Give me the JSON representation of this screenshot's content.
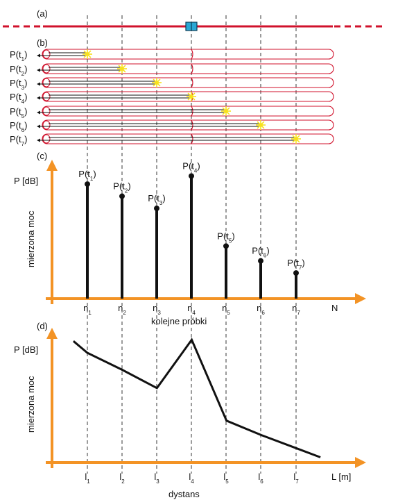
{
  "panel_labels": [
    "(a)",
    "(b)",
    "(c)",
    "(d)"
  ],
  "colors": {
    "fiber_red": "#d0112b",
    "axis_orange": "#f39325",
    "flash_yellow": "#f7e11d",
    "device_blue": "#2aa7d4",
    "ink": "#111111"
  },
  "pulse_labels": [
    {
      "base": "P(t",
      "sub": "1",
      "end": ")"
    },
    {
      "base": "P(t",
      "sub": "2",
      "end": ")"
    },
    {
      "base": "P(t",
      "sub": "3",
      "end": ")"
    },
    {
      "base": "P(t",
      "sub": "4",
      "end": ")"
    },
    {
      "base": "P(t",
      "sub": "5",
      "end": ")"
    },
    {
      "base": "P(t",
      "sub": "6",
      "end": ")"
    },
    {
      "base": "P(t",
      "sub": "7",
      "end": ")"
    }
  ],
  "chart_data": [
    {
      "type": "bar",
      "panel": "(c)",
      "ylabel_top": "P [dB]",
      "ylabel": "mierzona moc",
      "xlabel": "kolejne próbki",
      "x_end_label": "N",
      "categories": [
        {
          "base": "n",
          "sub": "1"
        },
        {
          "base": "n",
          "sub": "2"
        },
        {
          "base": "n",
          "sub": "3"
        },
        {
          "base": "n",
          "sub": "4"
        },
        {
          "base": "n",
          "sub": "5"
        },
        {
          "base": "n",
          "sub": "6"
        },
        {
          "base": "n",
          "sub": "7"
        }
      ],
      "values": [
        0.85,
        0.76,
        0.67,
        0.91,
        0.39,
        0.28,
        0.19
      ],
      "value_labels": [
        {
          "base": "P(t",
          "sub": "1",
          "end": ")"
        },
        {
          "base": "P(t",
          "sub": "2",
          "end": ")"
        },
        {
          "base": "P(t",
          "sub": "3",
          "end": ")"
        },
        {
          "base": "P(t",
          "sub": "4",
          "end": ")"
        },
        {
          "base": "P(t",
          "sub": "5",
          "end": ")"
        },
        {
          "base": "P(t",
          "sub": "6",
          "end": ")"
        },
        {
          "base": "P(t",
          "sub": "7",
          "end": ")"
        }
      ],
      "ylim": [
        0,
        1
      ]
    },
    {
      "type": "line",
      "panel": "(d)",
      "ylabel_top": "P [dB]",
      "ylabel": "mierzona moc",
      "xlabel": "dystans",
      "x_end_label": "L [m]",
      "categories": [
        {
          "base": "l",
          "sub": "1"
        },
        {
          "base": "l",
          "sub": "2"
        },
        {
          "base": "l",
          "sub": "3"
        },
        {
          "base": "l",
          "sub": "4"
        },
        {
          "base": "l",
          "sub": "5"
        },
        {
          "base": "l",
          "sub": "6"
        },
        {
          "base": "l",
          "sub": "7"
        }
      ],
      "x": [
        0.6,
        1,
        2,
        3,
        4,
        5,
        6,
        7,
        7.7
      ],
      "y": [
        0.93,
        0.84,
        0.71,
        0.57,
        0.94,
        0.32,
        0.21,
        0.11,
        0.04
      ],
      "ylim": [
        0,
        1
      ]
    }
  ]
}
